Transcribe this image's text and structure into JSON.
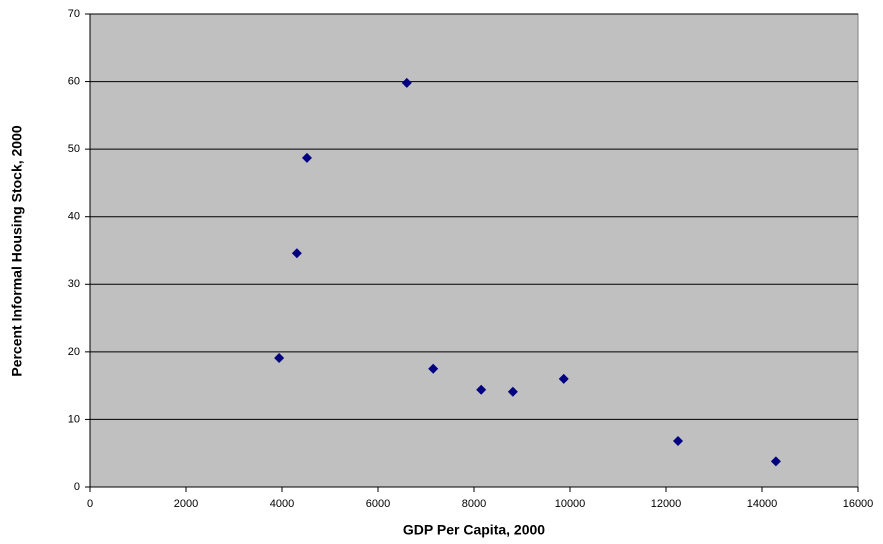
{
  "chart_data": {
    "type": "scatter",
    "x_label": "GDP Per Capita, 2000",
    "y_label": "Percent Informal Housing Stock, 2000",
    "x": [
      3940,
      4310,
      4520,
      6600,
      7150,
      8150,
      8810,
      9870,
      12250,
      14290
    ],
    "series": [
      {
        "color": "#000080",
        "values": [
          19.1,
          34.6,
          48.7,
          59.8,
          17.5,
          14.4,
          14.1,
          16.0,
          6.8,
          3.8
        ]
      }
    ],
    "xlim": [
      0,
      16000
    ],
    "xticks": [
      0,
      2000,
      4000,
      6000,
      8000,
      10000,
      12000,
      14000,
      16000
    ],
    "ylim": [
      0,
      70
    ],
    "yticks": [
      0,
      10,
      20,
      30,
      40,
      50,
      60,
      70
    ],
    "grid": true,
    "background": "#c0c0c0"
  }
}
